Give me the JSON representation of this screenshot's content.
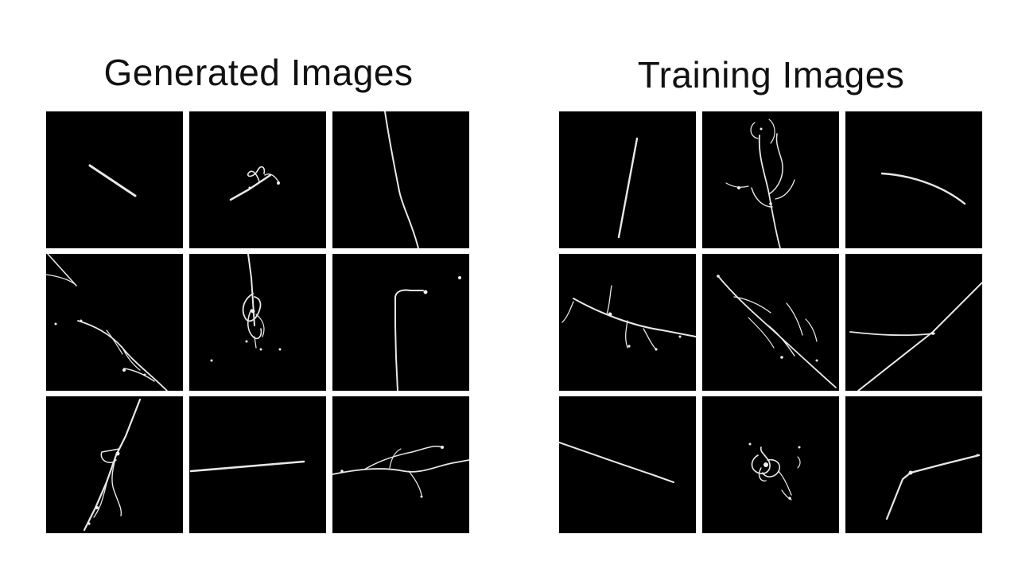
{
  "panels": [
    {
      "title": "Generated Images"
    },
    {
      "title": "Training Images"
    }
  ]
}
